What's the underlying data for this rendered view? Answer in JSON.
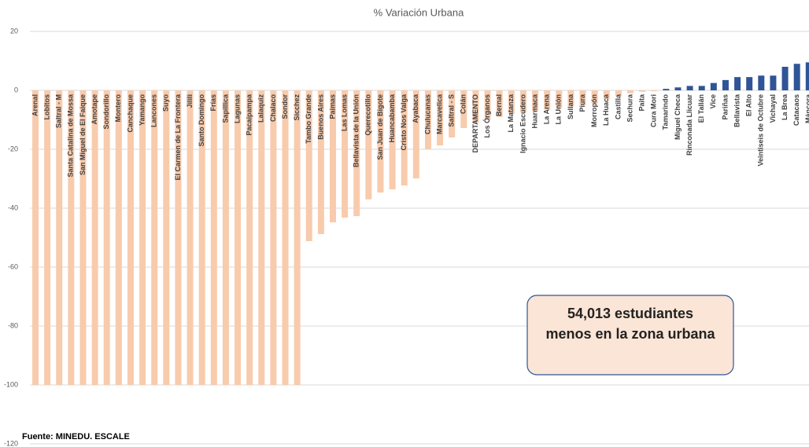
{
  "chart_data": {
    "type": "bar",
    "title": "% Variación Urbana",
    "categories": [
      "Arenal",
      "Lobitos",
      "Saltral - M",
      "Santa Catalina de Mossa",
      "San Miguel de El Faique",
      "Amotape",
      "Sondorillo",
      "Montero",
      "Canchaque",
      "Yamango",
      "Lancones",
      "Suyo",
      "El Carmen de La Frontera",
      "Jilili",
      "Santo Domingo",
      "Frías",
      "Sapillica",
      "Lagunas",
      "Pacaipampa",
      "Lalaquiz",
      "Chalaco",
      "Sondor",
      "Sicchez",
      "Tambo Grande",
      "Buenos Aires",
      "Paimas",
      "Las Lomas",
      "Bellavista de la Unión",
      "Querecotillo",
      "San Juan de Bigote",
      "Huancabamba",
      "Cristo Nos Valga",
      "Ayabaca",
      "Chulucanas",
      "Marcavelica",
      "Saltral - S",
      "Colán",
      "DEPARTAMENTO",
      "Los Órganos",
      "Bernal",
      "La Matanza",
      "Ignacio Escudero",
      "Huarmaca",
      "La Arena",
      "La Unión",
      "Sullana",
      "Piura",
      "Morropón",
      "La Huaca",
      "Castilla",
      "Sechura",
      "Paita",
      "Cura Mori",
      "Tamarindo",
      "Miguel Checa",
      "Rinconada Llicuar",
      "El Tallán",
      "Vice",
      "Pariñas",
      "Bellavista",
      "El Alto",
      "Veintiseis de Octubre",
      "Vichayal",
      "La Brea",
      "Catacaos",
      "Máncora"
    ],
    "values": [
      -100,
      -100,
      -100,
      -100,
      -100,
      -100,
      -100,
      -100,
      -100,
      -100,
      -100,
      -100,
      -100,
      -100,
      -100,
      -100,
      -100,
      -100,
      -100,
      -100,
      -100,
      -100,
      -100,
      -51.2,
      -48.8,
      -44.8,
      -43.2,
      -42.7,
      -37,
      -34.7,
      -33.6,
      -32.3,
      -29.9,
      -20,
      -18.7,
      -16,
      -12.8,
      -11,
      -10,
      -9,
      -8,
      -7.5,
      -7,
      -6.5,
      -6,
      -5.5,
      -5,
      -4.5,
      -3,
      -2,
      -1,
      -0.5,
      -0.3,
      0.5,
      1,
      1.5,
      1.5,
      2.5,
      3.5,
      4.5,
      4.5,
      5,
      5,
      8,
      9,
      9.5
    ],
    "colors": {
      "negative": "#f8cbad",
      "positive": "#2f5597"
    },
    "ylim": [
      -120,
      20
    ],
    "yticks": [
      -120,
      -100,
      -80,
      -60,
      -40,
      -20,
      0,
      20
    ],
    "grid": true,
    "annotation": [
      "54,013 estudiantes",
      "menos en la zona urbana"
    ],
    "source": "Fuente: MINEDU. ESCALE"
  }
}
